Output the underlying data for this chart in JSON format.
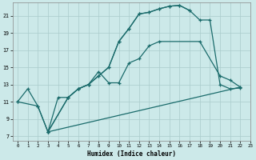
{
  "xlabel": "Humidex (Indice chaleur)",
  "xlim": [
    -0.5,
    23
  ],
  "ylim": [
    6.5,
    22.5
  ],
  "xticks": [
    0,
    1,
    2,
    3,
    4,
    5,
    6,
    7,
    8,
    9,
    10,
    11,
    12,
    13,
    14,
    15,
    16,
    17,
    18,
    19,
    20,
    21,
    22,
    23
  ],
  "yticks": [
    7,
    9,
    11,
    13,
    15,
    17,
    19,
    21
  ],
  "bg_color": "#cce9e9",
  "grid_color": "#aacccc",
  "line_color": "#1a6b6b",
  "curve1_x": [
    0,
    1,
    2,
    3,
    4,
    5,
    6,
    7,
    8,
    9,
    10,
    11,
    12,
    13,
    14,
    15,
    16,
    17
  ],
  "curve1_y": [
    11,
    12.5,
    10.5,
    7.5,
    11.5,
    11.5,
    12.5,
    13.0,
    14.0,
    15.0,
    18.0,
    19.5,
    21.2,
    21.4,
    21.8,
    22.1,
    22.2,
    21.6
  ],
  "curve2_x": [
    0,
    2,
    3,
    5,
    6,
    7,
    8,
    9,
    10,
    11,
    12,
    13,
    14,
    15,
    16,
    17,
    18,
    19,
    20,
    21,
    22
  ],
  "curve2_y": [
    11,
    10.5,
    7.5,
    11.5,
    12.5,
    13.0,
    14.0,
    15.0,
    18.0,
    19.5,
    21.2,
    21.4,
    21.8,
    22.1,
    22.2,
    21.6,
    20.5,
    20.5,
    13.0,
    12.5,
    12.6
  ],
  "curve3_x": [
    3,
    5,
    6,
    7,
    8,
    9,
    10,
    11,
    12,
    13,
    14,
    18,
    20,
    21,
    22
  ],
  "curve3_y": [
    7.5,
    11.5,
    12.5,
    13.0,
    14.5,
    13.2,
    13.2,
    15.5,
    16.0,
    17.5,
    18.0,
    18.0,
    14.0,
    13.5,
    12.7
  ],
  "curve4_x": [
    3,
    22
  ],
  "curve4_y": [
    7.5,
    12.7
  ]
}
